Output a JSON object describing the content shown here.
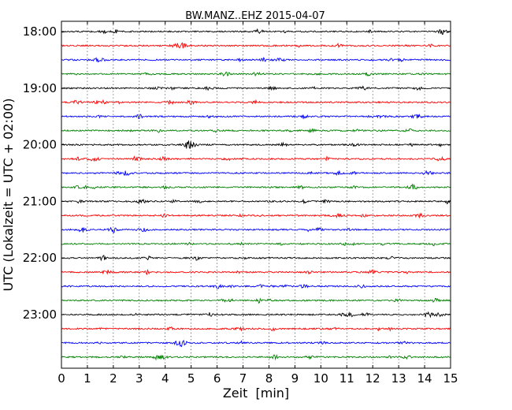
{
  "chart_data": {
    "type": "line",
    "title": "BW.MANZ..EHZ 2015-04-07",
    "xlabel": "Zeit  [min]",
    "ylabel": "UTC (Lokalzeit = UTC + 02:00)",
    "xlim": [
      0,
      15
    ],
    "x_ticks": [
      "0",
      "1",
      "2",
      "3",
      "4",
      "5",
      "6",
      "7",
      "8",
      "9",
      "10",
      "11",
      "12",
      "13",
      "14",
      "15"
    ],
    "y_ticks": [
      "18:00",
      "19:00",
      "20:00",
      "21:00",
      "22:00",
      "23:00"
    ],
    "grid": "vertical dotted lines at each minute",
    "trace_colors": [
      "#000000",
      "#ff0000",
      "#0000ff",
      "#008000"
    ],
    "trace_interval_minutes": 15,
    "traces": [
      {
        "start": "18:00",
        "color": "#000000"
      },
      {
        "start": "18:15",
        "color": "#ff0000"
      },
      {
        "start": "18:30",
        "color": "#0000ff"
      },
      {
        "start": "18:45",
        "color": "#008000"
      },
      {
        "start": "19:00",
        "color": "#000000"
      },
      {
        "start": "19:15",
        "color": "#ff0000"
      },
      {
        "start": "19:30",
        "color": "#0000ff"
      },
      {
        "start": "19:45",
        "color": "#008000"
      },
      {
        "start": "20:00",
        "color": "#000000"
      },
      {
        "start": "20:15",
        "color": "#ff0000"
      },
      {
        "start": "20:30",
        "color": "#0000ff"
      },
      {
        "start": "20:45",
        "color": "#008000"
      },
      {
        "start": "21:00",
        "color": "#000000"
      },
      {
        "start": "21:15",
        "color": "#ff0000"
      },
      {
        "start": "21:30",
        "color": "#0000ff"
      },
      {
        "start": "21:45",
        "color": "#008000"
      },
      {
        "start": "22:00",
        "color": "#000000"
      },
      {
        "start": "22:15",
        "color": "#ff0000"
      },
      {
        "start": "22:30",
        "color": "#0000ff"
      },
      {
        "start": "22:45",
        "color": "#008000"
      },
      {
        "start": "23:00",
        "color": "#000000"
      },
      {
        "start": "23:15",
        "color": "#ff0000"
      },
      {
        "start": "23:30",
        "color": "#0000ff"
      },
      {
        "start": "23:45",
        "color": "#008000"
      }
    ]
  }
}
